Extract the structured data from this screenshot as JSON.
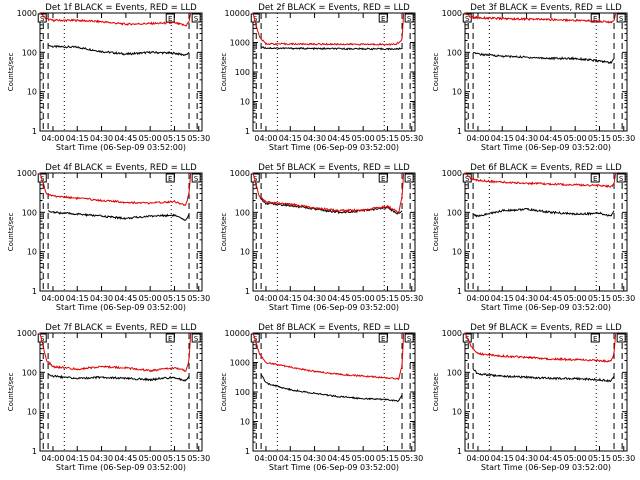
{
  "colors": {
    "events": "#000000",
    "lld": "#e00000",
    "axis": "#000000"
  },
  "chart_data": [
    {
      "type": "line",
      "title": "Det 1f BLACK = Events, RED = LLD",
      "xlabel": "Start Time (06-Sep-09 03:52:00)",
      "ylabel": "Counts/sec",
      "yscale": "log",
      "ylim": [
        1,
        1000
      ],
      "x_range": [
        "03:52",
        "05:32"
      ],
      "x_ticks": [
        "04:00",
        "04:15",
        "04:30",
        "04:45",
        "05:00",
        "05:15",
        "05:30"
      ],
      "y_ticks": [
        "1",
        "10",
        "100",
        "1000"
      ],
      "corner_labels": [
        "S",
        "E",
        "S"
      ],
      "markers": {
        "dashed": [
          "03:54",
          "03:57",
          "05:24",
          "05:29"
        ],
        "dotted": [
          "04:07",
          "05:13"
        ]
      },
      "series": [
        {
          "name": "Events",
          "x": [
            "03:57",
            "04:00",
            "04:15",
            "04:30",
            "04:45",
            "05:00",
            "05:15",
            "05:22",
            "05:24"
          ],
          "values": [
            150,
            140,
            135,
            105,
            90,
            100,
            95,
            85,
            100
          ]
        },
        {
          "name": "LLD",
          "x": [
            "03:52",
            "03:56",
            "04:00",
            "04:15",
            "04:30",
            "04:45",
            "05:00",
            "05:15",
            "05:22",
            "05:24",
            "05:25"
          ],
          "values": [
            1000,
            700,
            650,
            650,
            600,
            520,
            540,
            560,
            480,
            600,
            1000
          ]
        }
      ]
    },
    {
      "type": "line",
      "title": "Det 2f BLACK = Events, RED = LLD",
      "xlabel": "Start Time (06-Sep-09 03:52:00)",
      "ylabel": "Counts/sec",
      "yscale": "log",
      "ylim": [
        1,
        10000
      ],
      "x_range": [
        "03:52",
        "05:32"
      ],
      "x_ticks": [
        "04:00",
        "04:15",
        "04:30",
        "04:45",
        "05:00",
        "05:15",
        "05:30"
      ],
      "y_ticks": [
        "1",
        "10",
        "100",
        "1000",
        "10000"
      ],
      "corner_labels": [
        "S",
        "E",
        "S"
      ],
      "markers": {
        "dashed": [
          "03:54",
          "03:57",
          "05:24",
          "05:29"
        ],
        "dotted": [
          "04:07",
          "05:13"
        ]
      },
      "series": [
        {
          "name": "Events",
          "x": [
            "03:57",
            "04:00",
            "04:30",
            "05:00",
            "05:20",
            "05:24"
          ],
          "values": [
            700,
            650,
            620,
            610,
            600,
            620
          ]
        },
        {
          "name": "LLD",
          "x": [
            "03:52",
            "03:56",
            "04:00",
            "04:30",
            "05:00",
            "05:20",
            "05:24",
            "05:25"
          ],
          "values": [
            10000,
            1500,
            900,
            880,
            870,
            860,
            1200,
            10000
          ]
        }
      ]
    },
    {
      "type": "line",
      "title": "Det 3f BLACK = Events, RED = LLD",
      "xlabel": "Start Time (06-Sep-09 03:52:00)",
      "ylabel": "Counts/sec",
      "yscale": "log",
      "ylim": [
        1,
        1000
      ],
      "x_range": [
        "03:52",
        "05:32"
      ],
      "x_ticks": [
        "04:00",
        "04:15",
        "04:30",
        "04:45",
        "05:00",
        "05:15",
        "05:30"
      ],
      "y_ticks": [
        "1",
        "10",
        "100",
        "1000"
      ],
      "corner_labels": [
        "S",
        "E",
        "S"
      ],
      "markers": {
        "dashed": [
          "03:54",
          "03:57",
          "05:24",
          "05:29"
        ],
        "dotted": [
          "04:07",
          "05:13"
        ]
      },
      "series": [
        {
          "name": "Events",
          "x": [
            "03:57",
            "04:00",
            "04:15",
            "04:30",
            "04:45",
            "05:00",
            "05:15",
            "05:22",
            "05:24"
          ],
          "values": [
            100,
            90,
            80,
            75,
            70,
            70,
            60,
            55,
            70
          ]
        },
        {
          "name": "LLD",
          "x": [
            "03:52",
            "03:56",
            "04:00",
            "04:15",
            "04:30",
            "04:45",
            "05:00",
            "05:15",
            "05:22",
            "05:24",
            "05:25"
          ],
          "values": [
            1000,
            780,
            760,
            720,
            700,
            680,
            650,
            620,
            580,
            620,
            1000
          ]
        }
      ]
    },
    {
      "type": "line",
      "title": "Det 4f BLACK = Events, RED = LLD",
      "xlabel": "Start Time (06-Sep-09 03:52:00)",
      "ylabel": "Counts/sec",
      "yscale": "log",
      "ylim": [
        1,
        1000
      ],
      "x_range": [
        "03:52",
        "05:32"
      ],
      "x_ticks": [
        "04:00",
        "04:15",
        "04:30",
        "04:45",
        "05:00",
        "05:15",
        "05:30"
      ],
      "y_ticks": [
        "1",
        "10",
        "100",
        "1000"
      ],
      "corner_labels": [
        "S",
        "E",
        "S"
      ],
      "markers": {
        "dashed": [
          "03:54",
          "03:57",
          "05:24",
          "05:29"
        ],
        "dotted": [
          "04:07",
          "05:13"
        ]
      },
      "series": [
        {
          "name": "Events",
          "x": [
            "03:57",
            "04:00",
            "04:15",
            "04:30",
            "04:45",
            "05:00",
            "05:15",
            "05:22",
            "05:24"
          ],
          "values": [
            110,
            100,
            90,
            80,
            70,
            80,
            85,
            60,
            90
          ]
        },
        {
          "name": "LLD",
          "x": [
            "03:52",
            "03:56",
            "04:00",
            "04:15",
            "04:30",
            "04:45",
            "05:00",
            "05:15",
            "05:22",
            "05:24",
            "05:25"
          ],
          "values": [
            1000,
            300,
            260,
            230,
            200,
            180,
            170,
            190,
            150,
            300,
            1000
          ]
        }
      ]
    },
    {
      "type": "line",
      "title": "Det 5f BLACK = Events, RED = LLD",
      "xlabel": "Start Time (06-Sep-09 03:52:00)",
      "ylabel": "Counts/sec",
      "yscale": "log",
      "ylim": [
        1,
        1000
      ],
      "x_range": [
        "03:52",
        "05:32"
      ],
      "x_ticks": [
        "04:00",
        "04:15",
        "04:30",
        "04:45",
        "05:00",
        "05:15",
        "05:30"
      ],
      "y_ticks": [
        "1",
        "10",
        "100",
        "1000"
      ],
      "corner_labels": [
        "S",
        "E",
        "S"
      ],
      "markers": {
        "dashed": [
          "03:54",
          "03:57",
          "05:24",
          "05:29"
        ],
        "dotted": [
          "04:07",
          "05:13"
        ]
      },
      "series": [
        {
          "name": "Events",
          "x": [
            "03:57",
            "04:00",
            "04:15",
            "04:30",
            "04:45",
            "05:00",
            "05:15",
            "05:22",
            "05:24"
          ],
          "values": [
            220,
            170,
            150,
            120,
            100,
            110,
            130,
            90,
            110
          ]
        },
        {
          "name": "LLD",
          "x": [
            "03:52",
            "03:56",
            "04:00",
            "04:15",
            "04:30",
            "04:45",
            "05:00",
            "05:15",
            "05:22",
            "05:24",
            "05:25"
          ],
          "values": [
            1000,
            250,
            180,
            160,
            130,
            110,
            115,
            140,
            100,
            250,
            1000
          ]
        }
      ]
    },
    {
      "type": "line",
      "title": "Det 6f BLACK = Events, RED = LLD",
      "xlabel": "Start Time (06-Sep-09 03:52:00)",
      "ylabel": "Counts/sec",
      "yscale": "log",
      "ylim": [
        1,
        1000
      ],
      "x_range": [
        "03:52",
        "05:32"
      ],
      "x_ticks": [
        "04:00",
        "04:15",
        "04:30",
        "04:45",
        "05:00",
        "05:15",
        "05:30"
      ],
      "y_ticks": [
        "1",
        "10",
        "100",
        "1000"
      ],
      "corner_labels": [
        "S",
        "E",
        "S"
      ],
      "markers": {
        "dashed": [
          "03:54",
          "03:57",
          "05:24",
          "05:29"
        ],
        "dotted": [
          "04:07",
          "05:13"
        ]
      },
      "series": [
        {
          "name": "Events",
          "x": [
            "03:57",
            "04:00",
            "04:15",
            "04:30",
            "04:45",
            "05:00",
            "05:15",
            "05:22",
            "05:24"
          ],
          "values": [
            90,
            80,
            110,
            120,
            100,
            90,
            95,
            80,
            110
          ]
        },
        {
          "name": "LLD",
          "x": [
            "03:52",
            "03:56",
            "04:00",
            "04:15",
            "04:30",
            "04:45",
            "05:00",
            "05:15",
            "05:22",
            "05:24",
            "05:25"
          ],
          "values": [
            1000,
            700,
            650,
            580,
            550,
            520,
            500,
            480,
            450,
            520,
            1000
          ]
        }
      ]
    },
    {
      "type": "line",
      "title": "Det 7f BLACK = Events, RED = LLD",
      "xlabel": "Start Time (06-Sep-09 03:52:00)",
      "ylabel": "Counts/sec",
      "yscale": "log",
      "ylim": [
        1,
        1000
      ],
      "x_range": [
        "03:52",
        "05:32"
      ],
      "x_ticks": [
        "04:00",
        "04:15",
        "04:30",
        "04:45",
        "05:00",
        "05:15",
        "05:30"
      ],
      "y_ticks": [
        "1",
        "10",
        "100",
        "1000"
      ],
      "corner_labels": [
        "S",
        "E",
        "S"
      ],
      "markers": {
        "dashed": [
          "03:54",
          "03:57",
          "05:24",
          "05:29"
        ],
        "dotted": [
          "04:07",
          "05:13"
        ]
      },
      "series": [
        {
          "name": "Events",
          "x": [
            "03:57",
            "04:00",
            "04:15",
            "04:30",
            "04:45",
            "05:00",
            "05:15",
            "05:22",
            "05:24"
          ],
          "values": [
            90,
            80,
            70,
            75,
            70,
            65,
            75,
            60,
            80
          ]
        },
        {
          "name": "LLD",
          "x": [
            "03:52",
            "03:56",
            "04:00",
            "04:15",
            "04:30",
            "04:45",
            "05:00",
            "05:15",
            "05:22",
            "05:24",
            "05:25"
          ],
          "values": [
            1000,
            200,
            140,
            120,
            140,
            130,
            110,
            130,
            110,
            200,
            1000
          ]
        }
      ]
    },
    {
      "type": "line",
      "title": "Det 8f BLACK = Events, RED = LLD",
      "xlabel": "Start Time (06-Sep-09 03:52:00)",
      "ylabel": "Counts/sec",
      "yscale": "log",
      "ylim": [
        1,
        10000
      ],
      "x_range": [
        "03:52",
        "05:32"
      ],
      "x_ticks": [
        "04:00",
        "04:15",
        "04:30",
        "04:45",
        "05:00",
        "05:15",
        "05:30"
      ],
      "y_ticks": [
        "1",
        "10",
        "100",
        "1000",
        "10000"
      ],
      "corner_labels": [
        "S",
        "E",
        "S"
      ],
      "markers": {
        "dashed": [
          "03:54",
          "03:57",
          "05:24",
          "05:29"
        ],
        "dotted": [
          "04:07",
          "05:13"
        ]
      },
      "series": [
        {
          "name": "Events",
          "x": [
            "03:57",
            "04:00",
            "04:15",
            "04:30",
            "04:45",
            "05:00",
            "05:15",
            "05:22",
            "05:24"
          ],
          "values": [
            400,
            200,
            120,
            90,
            70,
            60,
            55,
            50,
            80
          ]
        },
        {
          "name": "LLD",
          "x": [
            "03:52",
            "03:56",
            "04:00",
            "04:15",
            "04:30",
            "04:45",
            "05:00",
            "05:15",
            "05:22",
            "05:24",
            "05:25"
          ],
          "values": [
            10000,
            2000,
            1000,
            700,
            500,
            400,
            350,
            300,
            280,
            800,
            10000
          ]
        }
      ]
    },
    {
      "type": "line",
      "title": "Det 9f BLACK = Events, RED = LLD",
      "xlabel": "Start Time (06-Sep-09 03:52:00)",
      "ylabel": "Counts/sec",
      "yscale": "log",
      "ylim": [
        1,
        1000
      ],
      "x_range": [
        "03:52",
        "05:32"
      ],
      "x_ticks": [
        "04:00",
        "04:15",
        "04:30",
        "04:45",
        "05:00",
        "05:15",
        "05:30"
      ],
      "y_ticks": [
        "1",
        "10",
        "100",
        "1000"
      ],
      "corner_labels": [
        "S",
        "E",
        "S"
      ],
      "markers": {
        "dashed": [
          "03:54",
          "03:57",
          "05:24",
          "05:29"
        ],
        "dotted": [
          "04:07",
          "05:13"
        ]
      },
      "series": [
        {
          "name": "Events",
          "x": [
            "03:57",
            "04:00",
            "04:15",
            "04:30",
            "04:45",
            "05:00",
            "05:15",
            "05:22",
            "05:24"
          ],
          "values": [
            120,
            90,
            80,
            75,
            70,
            70,
            65,
            60,
            80
          ]
        },
        {
          "name": "LLD",
          "x": [
            "03:52",
            "03:56",
            "04:00",
            "04:15",
            "04:30",
            "04:45",
            "05:00",
            "05:15",
            "05:22",
            "05:24",
            "05:25"
          ],
          "values": [
            1000,
            450,
            300,
            260,
            240,
            220,
            210,
            200,
            190,
            300,
            1000
          ]
        }
      ]
    }
  ]
}
